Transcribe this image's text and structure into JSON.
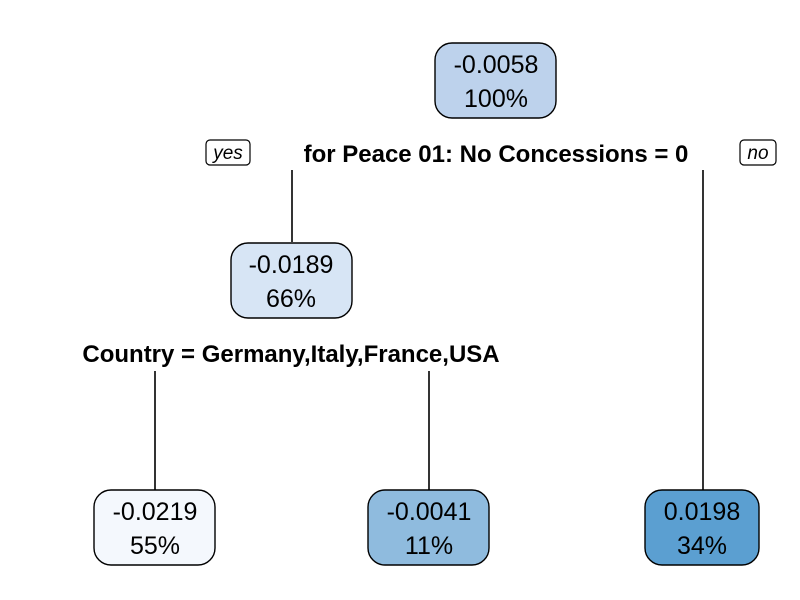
{
  "tree": {
    "branch_labels": {
      "yes": "yes",
      "no": "no"
    },
    "root": {
      "value": "-0.0058",
      "percent": "100%",
      "fill": "#bdd2ec",
      "split": "for Peace 01: No Concessions = 0"
    },
    "left": {
      "value": "-0.0189",
      "percent": "66%",
      "fill": "#d7e5f5",
      "split": "Country = Germany,Italy,France,USA"
    },
    "leaves": [
      {
        "key": "left-left",
        "value": "-0.0219",
        "percent": "55%",
        "fill": "#f4f8fd"
      },
      {
        "key": "left-right",
        "value": "-0.0041",
        "percent": "11%",
        "fill": "#8fbbde"
      },
      {
        "key": "right",
        "value": "0.0198",
        "percent": "34%",
        "fill": "#5b9fd1"
      }
    ]
  }
}
